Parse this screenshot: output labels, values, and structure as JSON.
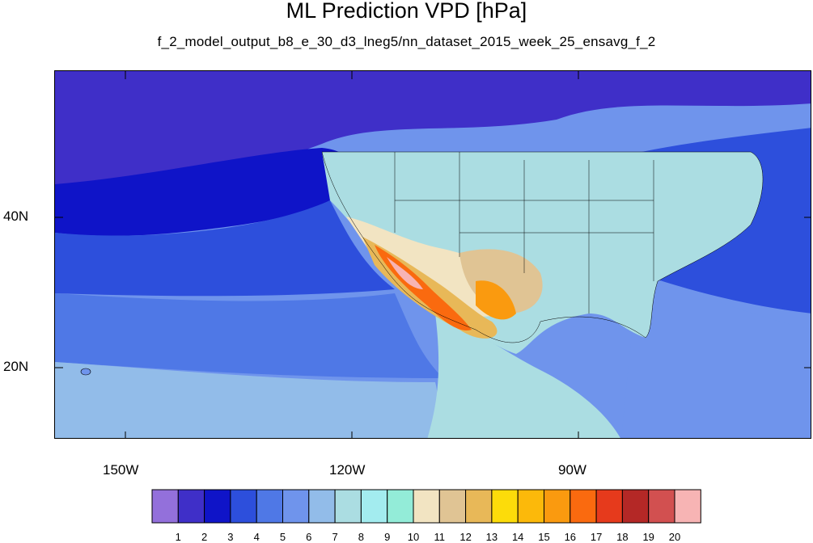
{
  "header": {
    "title": "ML Prediction VPD [hPa]",
    "subtitle": "f_2_model_output_b8_e_30_d3_lneg5/nn_dataset_2015_week_25_ensavg_f_2"
  },
  "axes": {
    "lat_labels": [
      "40N",
      "20N"
    ],
    "lon_labels": [
      "150W",
      "120W",
      "90W"
    ]
  },
  "colorbar": {
    "labels": [
      "1",
      "2",
      "3",
      "4",
      "5",
      "6",
      "7",
      "8",
      "9",
      "10",
      "11",
      "12",
      "13",
      "14",
      "15",
      "16",
      "17",
      "18",
      "19",
      "20"
    ],
    "colors": [
      "#9370db",
      "#3f2fc8",
      "#0f14c8",
      "#2d4fdc",
      "#4f78e6",
      "#6f94ec",
      "#92bce9",
      "#abdde2",
      "#a3ecef",
      "#93ecd8",
      "#f2e4c2",
      "#e0c494",
      "#e8b858",
      "#fcdc0a",
      "#fcb90a",
      "#fa9a0f",
      "#fa6a0f",
      "#e63a1c",
      "#b42826",
      "#d25050",
      "#f7b4b4"
    ]
  },
  "colors": {
    "ocean_deep": "#3f2fc8",
    "ocean_mid": "#2d4fdc",
    "land_base": "#abdde2",
    "hot": "#fa6a0f"
  }
}
